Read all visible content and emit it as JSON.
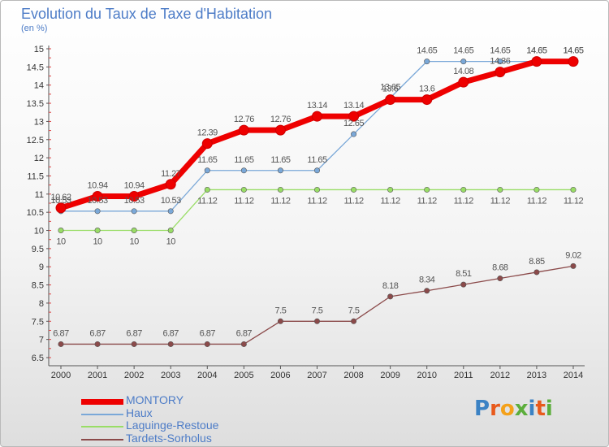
{
  "chart_data": {
    "type": "line",
    "title": "Evolution du Taux de Taxe d'Habitation",
    "subtitle": "(en %)",
    "x": [
      2000,
      2001,
      2002,
      2003,
      2004,
      2005,
      2006,
      2007,
      2008,
      2009,
      2010,
      2011,
      2012,
      2013,
      2014
    ],
    "ylim": [
      6.5,
      15
    ],
    "yticks": [
      6.5,
      7,
      7.5,
      8,
      8.5,
      9,
      9.5,
      10,
      10.5,
      11,
      11.5,
      12,
      12.5,
      13,
      13.5,
      14,
      14.5,
      15
    ],
    "series": [
      {
        "name": "MONTORY",
        "color": "#ee0000",
        "values": [
          10.62,
          10.94,
          10.94,
          11.27,
          12.39,
          12.76,
          12.76,
          13.14,
          13.14,
          13.6,
          13.6,
          14.08,
          14.36,
          14.65,
          14.65
        ],
        "labels": [
          "10.62",
          "10.94",
          "10.94",
          "11.27",
          "12.39",
          "12.76",
          "12.76",
          "13.14",
          "13.14",
          "13.6",
          "13.6",
          "14.08",
          "14.36",
          "14.65",
          "14.65"
        ]
      },
      {
        "name": "Haux",
        "color": "#7aa8d8",
        "values": [
          10.53,
          10.53,
          10.53,
          10.53,
          11.65,
          11.65,
          11.65,
          11.65,
          12.65,
          13.65,
          14.65,
          14.65,
          14.65,
          14.65,
          14.65
        ],
        "labels": [
          "10.53",
          "10.53",
          "10.53",
          "10.53",
          "11.65",
          "11.65",
          "11.65",
          "11.65",
          "12.65",
          "13.65",
          "14.65",
          "14.65",
          "14.65",
          "14.65",
          "14.65"
        ]
      },
      {
        "name": "Laguinge-Restoue",
        "color": "#99dd66",
        "values": [
          10,
          10,
          10,
          10,
          11.12,
          11.12,
          11.12,
          11.12,
          11.12,
          11.12,
          11.12,
          11.12,
          11.12,
          11.12,
          11.12
        ],
        "labels": [
          "10",
          "10",
          "10",
          "10",
          "11.12",
          "11.12",
          "11.12",
          "11.12",
          "11.12",
          "11.12",
          "11.12",
          "11.12",
          "11.12",
          "11.12",
          "11.12"
        ]
      },
      {
        "name": "Tardets-Sorholus",
        "color": "#8b4a4a",
        "values": [
          6.87,
          6.87,
          6.87,
          6.87,
          6.87,
          6.87,
          7.5,
          7.5,
          7.5,
          8.18,
          8.34,
          8.51,
          8.68,
          8.85,
          9.02
        ],
        "labels": [
          "6.87",
          "6.87",
          "6.87",
          "6.87",
          "6.87",
          "6.87",
          "7.5",
          "7.5",
          "7.5",
          "8.18",
          "8.34",
          "8.51",
          "8.68",
          "8.85",
          "9.02"
        ]
      }
    ],
    "grid": false,
    "legend_position": "bottom-left"
  },
  "logo": {
    "text": "Proxiti",
    "letter_colors": [
      "#3b82c4",
      "#e85a1c",
      "#f4a11a",
      "#5cae3c",
      "#3b82c4",
      "#e85a1c",
      "#5cae3c"
    ]
  }
}
